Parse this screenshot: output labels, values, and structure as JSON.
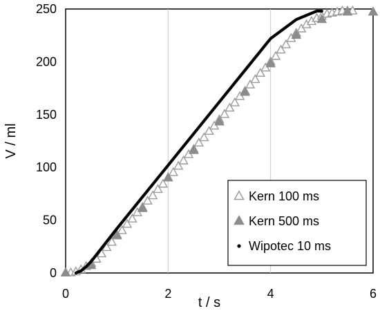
{
  "chart_data": {
    "type": "scatter",
    "xlabel": "t / s",
    "ylabel": "V / ml",
    "xlim": [
      0,
      6
    ],
    "ylim": [
      0,
      250
    ],
    "x_ticks": [
      "0",
      "2",
      "4",
      "6"
    ],
    "y_ticks": [
      "0",
      "50",
      "100",
      "150",
      "200",
      "250"
    ],
    "grid": "vertical",
    "legend_position": "bottom-right",
    "series": [
      {
        "name": "Kern 100 ms",
        "marker": "open-triangle",
        "color": "#9a9a9a",
        "x": [
          0.0,
          0.1,
          0.2,
          0.3,
          0.4,
          0.5,
          0.6,
          0.7,
          0.8,
          0.9,
          1.0,
          1.1,
          1.2,
          1.3,
          1.4,
          1.5,
          1.6,
          1.7,
          1.8,
          1.9,
          2.0,
          2.1,
          2.2,
          2.3,
          2.4,
          2.5,
          2.6,
          2.7,
          2.8,
          2.9,
          3.0,
          3.1,
          3.2,
          3.3,
          3.4,
          3.5,
          3.6,
          3.7,
          3.8,
          3.9,
          4.0,
          4.1,
          4.2,
          4.3,
          4.4,
          4.5,
          4.6,
          4.7,
          4.8,
          4.9,
          5.0,
          5.1,
          5.2,
          5.3,
          5.4,
          5.5,
          5.6
        ],
        "y": [
          0,
          0,
          1,
          3,
          6,
          9,
          13,
          18,
          24,
          29,
          35,
          40,
          46,
          51,
          57,
          62,
          68,
          73,
          79,
          84,
          90,
          95,
          101,
          106,
          112,
          117,
          123,
          128,
          134,
          139,
          145,
          150,
          156,
          161,
          167,
          172,
          178,
          183,
          189,
          194,
          200,
          205,
          211,
          216,
          222,
          227,
          231,
          235,
          238,
          241,
          243,
          245,
          246,
          247,
          248,
          248,
          248
        ]
      },
      {
        "name": "Kern 500 ms",
        "marker": "filled-triangle",
        "color": "#8c8c8c",
        "x": [
          0.0,
          0.5,
          1.0,
          1.5,
          2.0,
          2.5,
          3.0,
          3.5,
          4.0,
          4.5,
          5.0,
          5.5,
          6.0
        ],
        "y": [
          0,
          7,
          36,
          61,
          90,
          116,
          143,
          171,
          198,
          225,
          240,
          247,
          247
        ]
      },
      {
        "name": "Wipotec 10 ms",
        "marker": "small-dot",
        "color": "#000000",
        "x": [
          0.2,
          0.3,
          0.4,
          0.5,
          1.0,
          1.5,
          2.0,
          2.5,
          3.0,
          3.5,
          4.0,
          4.5,
          4.8,
          4.9,
          5.0
        ],
        "y": [
          0,
          2,
          6,
          11,
          42,
          72,
          102,
          132,
          162,
          192,
          222,
          240,
          246,
          248,
          248
        ]
      }
    ]
  }
}
